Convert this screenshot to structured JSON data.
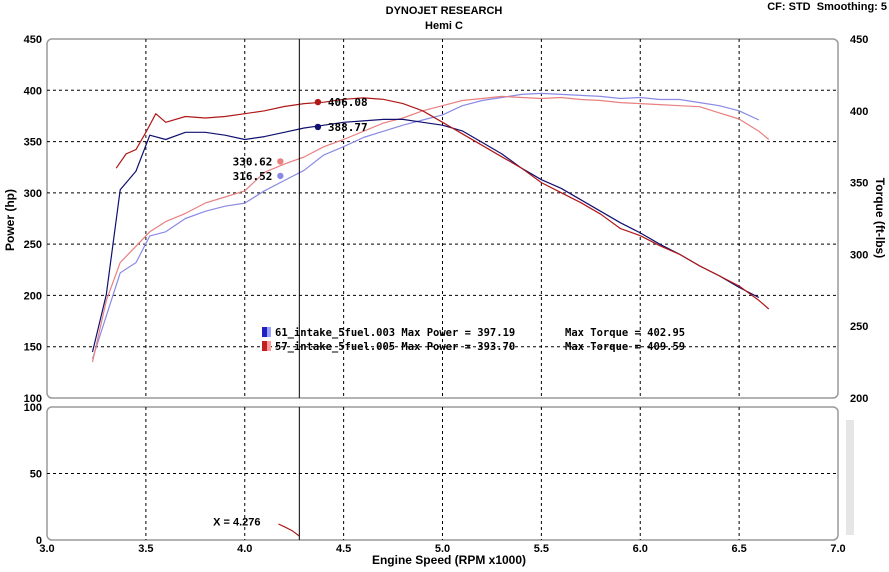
{
  "header": {
    "title": "DYNOJET RESEARCH",
    "subtitle": "Hemi C",
    "settings": "CF: STD  Smoothing: 5"
  },
  "colors": {
    "run1_power": "#8a8ae6",
    "run1_torque": "#101070",
    "run2_power": "#e88080",
    "run2_torque": "#b01818",
    "grid": "#000000",
    "panel_border": "#9a9a9a"
  },
  "chart_data": [
    {
      "type": "line",
      "title": "DYNOJET RESEARCH",
      "subtitle": "Hemi C",
      "xlabel": "Engine Speed (RPM x1000)",
      "ylabel": "Power (hp)",
      "y2label": "Torque (ft-lbs)",
      "xlim": [
        3.0,
        7.0
      ],
      "ylim": [
        100,
        450
      ],
      "y2lim": [
        200,
        450
      ],
      "x_ticks": [
        "3.0",
        "3.5",
        "4.0",
        "4.5",
        "5.0",
        "5.5",
        "6.0",
        "6.5",
        "7.0"
      ],
      "y_ticks": [
        "100",
        "150",
        "200",
        "250",
        "300",
        "350",
        "400",
        "450"
      ],
      "y2_ticks": [
        "200",
        "250",
        "300",
        "350",
        "400",
        "450"
      ],
      "grid": true,
      "cursor_x": 4.276,
      "cursor_label": "X = 4.276",
      "legend": [
        {
          "swatch": "run1",
          "run": "61_intake_5fuel.003",
          "power_text": "Max Power = 397.19",
          "torque_text": "Max Torque = 402.95"
        },
        {
          "swatch": "run2",
          "run": "57_intake_5fuel.005",
          "power_text": "Max Power = 393.70",
          "torque_text": "Max Torque = 409.59"
        }
      ],
      "cursor_readouts": [
        {
          "label": "406.08",
          "series": "run2_torque",
          "x": 4.37,
          "y2": 406.08
        },
        {
          "label": "388.77",
          "series": "run1_torque",
          "x": 4.37,
          "y2": 388.77
        },
        {
          "label": "330.62",
          "series": "run2_power",
          "x": 4.18,
          "y": 330.62
        },
        {
          "label": "316.52",
          "series": "run1_power",
          "x": 4.18,
          "y": 316.52
        }
      ],
      "series": [
        {
          "id": "run1_power",
          "axis": "left",
          "x": [
            3.23,
            3.3,
            3.37,
            3.45,
            3.52,
            3.6,
            3.7,
            3.8,
            3.9,
            4.0,
            4.1,
            4.2,
            4.3,
            4.4,
            4.5,
            4.6,
            4.7,
            4.8,
            4.9,
            5.0,
            5.1,
            5.2,
            5.3,
            5.4,
            5.5,
            5.6,
            5.7,
            5.8,
            5.9,
            6.0,
            6.1,
            6.2,
            6.3,
            6.4,
            6.5,
            6.6
          ],
          "y": [
            138,
            180,
            222,
            232,
            258,
            262,
            275,
            282,
            287,
            290,
            302,
            312,
            322,
            337,
            345,
            354,
            360,
            366,
            371,
            376,
            385,
            390,
            393,
            396,
            397,
            396,
            395,
            394,
            392,
            393,
            391,
            391,
            388,
            385,
            380,
            371
          ]
        },
        {
          "id": "run2_power",
          "axis": "left",
          "x": [
            3.23,
            3.3,
            3.37,
            3.45,
            3.52,
            3.6,
            3.7,
            3.8,
            3.9,
            4.0,
            4.1,
            4.2,
            4.3,
            4.4,
            4.5,
            4.6,
            4.7,
            4.8,
            4.9,
            5.0,
            5.1,
            5.2,
            5.3,
            5.4,
            5.5,
            5.6,
            5.7,
            5.8,
            5.9,
            6.0,
            6.1,
            6.2,
            6.3,
            6.4,
            6.5,
            6.6,
            6.65
          ],
          "y": [
            135,
            195,
            232,
            248,
            262,
            272,
            280,
            290,
            296,
            302,
            320,
            328,
            335,
            345,
            352,
            360,
            368,
            373,
            380,
            385,
            390,
            392,
            394,
            393,
            392,
            393,
            391,
            390,
            388,
            387,
            386,
            385,
            384,
            378,
            372,
            360,
            352
          ]
        },
        {
          "id": "run1_torque",
          "axis": "right",
          "x": [
            3.23,
            3.3,
            3.37,
            3.45,
            3.52,
            3.6,
            3.7,
            3.8,
            3.9,
            4.0,
            4.1,
            4.2,
            4.3,
            4.4,
            4.5,
            4.6,
            4.7,
            4.8,
            4.9,
            5.0,
            5.1,
            5.2,
            5.3,
            5.4,
            5.5,
            5.6,
            5.7,
            5.8,
            5.9,
            6.0,
            6.1,
            6.2,
            6.3,
            6.4,
            6.5,
            6.6
          ],
          "y2": [
            232,
            272,
            345,
            358,
            383,
            380,
            385,
            385,
            383,
            380,
            382,
            385,
            388,
            390,
            392,
            393,
            394,
            394,
            392,
            390,
            386,
            378,
            370,
            360,
            352,
            346,
            338,
            330,
            322,
            315,
            307,
            300,
            292,
            285,
            277,
            270
          ]
        },
        {
          "id": "run2_torque",
          "axis": "right",
          "x": [
            3.35,
            3.4,
            3.45,
            3.5,
            3.55,
            3.6,
            3.7,
            3.8,
            3.9,
            4.0,
            4.1,
            4.2,
            4.3,
            4.4,
            4.5,
            4.6,
            4.7,
            4.8,
            4.9,
            5.0,
            5.1,
            5.2,
            5.3,
            5.4,
            5.5,
            5.6,
            5.7,
            5.8,
            5.9,
            6.0,
            6.1,
            6.2,
            6.3,
            6.4,
            6.5,
            6.6,
            6.65
          ],
          "y2": [
            360,
            370,
            373,
            385,
            398,
            392,
            396,
            395,
            396,
            398,
            400,
            403,
            405,
            406,
            408,
            409,
            408,
            405,
            400,
            392,
            384,
            376,
            368,
            360,
            350,
            343,
            336,
            328,
            318,
            313,
            306,
            300,
            292,
            285,
            278,
            268,
            262
          ]
        }
      ]
    },
    {
      "type": "line",
      "xlim": [
        3.0,
        7.0
      ],
      "ylim": [
        0,
        100
      ],
      "y_ticks": [
        "0",
        "50",
        "100"
      ],
      "grid": true,
      "series": [
        {
          "id": "lower_trace",
          "axis": "left",
          "x": [
            4.17,
            4.2,
            4.24,
            4.276
          ],
          "y": [
            12,
            10,
            7,
            3
          ]
        }
      ]
    }
  ]
}
